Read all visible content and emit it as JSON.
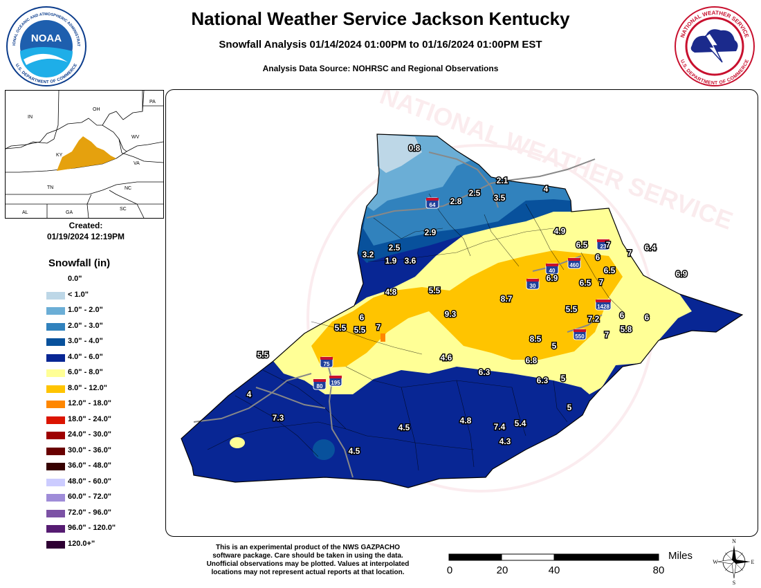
{
  "header": {
    "title": "National Weather Service Jackson Kentucky",
    "subtitle": "Snowfall Analysis 01/14/2024 01:00PM to 01/16/2024 01:00PM EST",
    "source": "Analysis Data Source: NOHRSC and Regional Observations"
  },
  "logos": {
    "noaa_top": "NATIONAL OCEANIC AND ATMOSPHERIC ADMINISTRATION",
    "noaa_center": "NOAA",
    "noaa_bottom": "U.S. DEPARTMENT OF COMMERCE",
    "nws_top": "NATIONAL WEATHER SERVICE",
    "nws_bottom": "U.S. DEPARTMENT OF COMMERCE"
  },
  "inset": {
    "states": [
      "IN",
      "OH",
      "PA",
      "KY",
      "WV",
      "VA",
      "TN",
      "NC",
      "SC",
      "AL",
      "GA"
    ],
    "highlight_color": "#e5a10e"
  },
  "created": {
    "label": "Created:",
    "date": "01/19/2024 12:19PM"
  },
  "legend": {
    "title": "Snowfall (in)",
    "items": [
      {
        "label": "0.0\"",
        "color": "#ffffff"
      },
      {
        "label": "< 1.0\"",
        "color": "#bdd7e7"
      },
      {
        "label": "1.0\" - 2.0\"",
        "color": "#6baed6"
      },
      {
        "label": "2.0\" - 3.0\"",
        "color": "#3182bd"
      },
      {
        "label": "3.0\" - 4.0\"",
        "color": "#08519c"
      },
      {
        "label": "4.0\" - 6.0\"",
        "color": "#082694"
      },
      {
        "label": "6.0\" - 8.0\"",
        "color": "#ffff96"
      },
      {
        "label": "8.0\" - 12.0\"",
        "color": "#ffc400"
      },
      {
        "label": "12.0\" - 18.0\"",
        "color": "#ff8700"
      },
      {
        "label": "18.0\" - 24.0\"",
        "color": "#db1400"
      },
      {
        "label": "24.0\" - 30.0\"",
        "color": "#9e0000"
      },
      {
        "label": "30.0\" - 36.0\"",
        "color": "#690000"
      },
      {
        "label": "36.0\" - 48.0\"",
        "color": "#360000"
      },
      {
        "label": "48.0\" - 60.0\"",
        "color": "#ccccff"
      },
      {
        "label": "60.0\" - 72.0\"",
        "color": "#9f8cd8"
      },
      {
        "label": "72.0\" - 96.0\"",
        "color": "#7c52a5"
      },
      {
        "label": "96.0\" - 120.0\"",
        "color": "#561c72"
      },
      {
        "label": "120.0+\"",
        "color": "#2e0033"
      }
    ]
  },
  "map": {
    "watermark": "NATIONAL WEATHER SERVICE",
    "observations": [
      {
        "value": "0.8"
      },
      {
        "value": "2.1"
      },
      {
        "value": "4"
      },
      {
        "value": "2.5"
      },
      {
        "value": "2.8"
      },
      {
        "value": "3.5"
      },
      {
        "value": "4.9"
      },
      {
        "value": "2.9"
      },
      {
        "value": "2.5"
      },
      {
        "value": "3.2"
      },
      {
        "value": "1.9"
      },
      {
        "value": "3.6"
      },
      {
        "value": "6.5"
      },
      {
        "value": "7"
      },
      {
        "value": "6.4"
      },
      {
        "value": "6"
      },
      {
        "value": "6.5"
      },
      {
        "value": "7"
      },
      {
        "value": "6.9"
      },
      {
        "value": "6.5"
      },
      {
        "value": "6.9"
      },
      {
        "value": "7"
      },
      {
        "value": "4.8"
      },
      {
        "value": "5.5"
      },
      {
        "value": "8.7"
      },
      {
        "value": "5.5"
      },
      {
        "value": "7.2"
      },
      {
        "value": "6"
      },
      {
        "value": "6"
      },
      {
        "value": "5.8"
      },
      {
        "value": "7"
      },
      {
        "value": "9.3"
      },
      {
        "value": "6"
      },
      {
        "value": "5.5"
      },
      {
        "value": "5.5"
      },
      {
        "value": "7"
      },
      {
        "value": "8.5"
      },
      {
        "value": "5"
      },
      {
        "value": "5.5"
      },
      {
        "value": "4.6"
      },
      {
        "value": "6.8"
      },
      {
        "value": "6.3"
      },
      {
        "value": "6.3"
      },
      {
        "value": "5"
      },
      {
        "value": "4"
      },
      {
        "value": "7.3"
      },
      {
        "value": "4.5"
      },
      {
        "value": "4.8"
      },
      {
        "value": "7.4"
      },
      {
        "value": "5.4"
      },
      {
        "value": "5"
      },
      {
        "value": "4.3"
      },
      {
        "value": "4.5"
      }
    ],
    "highways": [
      {
        "label": "64"
      },
      {
        "label": "23"
      },
      {
        "label": "460"
      },
      {
        "label": "40"
      },
      {
        "label": "30"
      },
      {
        "label": "1428"
      },
      {
        "label": "550"
      },
      {
        "label": "75"
      },
      {
        "label": "80"
      },
      {
        "label": "195"
      }
    ]
  },
  "footer": {
    "disclaimer_lines": [
      "This is an experimental product of the NWS GAZPACHO",
      "software package. Care should be taken in using the data.",
      "Unofficial observations may be plotted. Values at interpolated",
      "locations may not represent actual reports at that location."
    ],
    "scale_units": "Miles",
    "scale_ticks": [
      "0",
      "20",
      "40",
      "80"
    ],
    "compass": {
      "n": "N",
      "s": "S",
      "e": "E",
      "w": "W"
    }
  }
}
